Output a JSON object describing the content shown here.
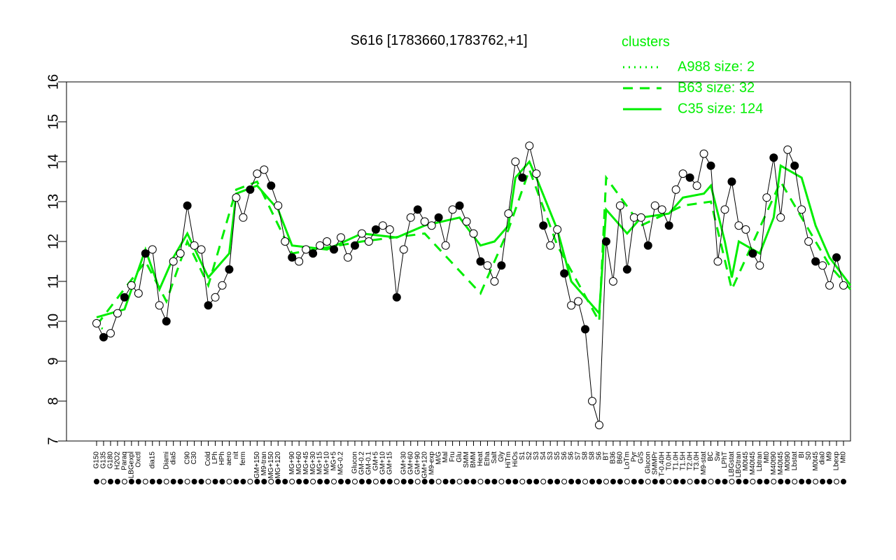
{
  "chart_data": {
    "type": "line",
    "title": "S616 [1783660,1783762,+1]",
    "legend_title": "clusters",
    "legend_position": "top-right",
    "ylim": [
      7,
      16
    ],
    "yticks": [
      7,
      8,
      9,
      10,
      11,
      12,
      13,
      14,
      15,
      16
    ],
    "categories": [
      "G150",
      "G135",
      "G180",
      "H2O2",
      "Paraq",
      "LBGexpl",
      "Oxctl",
      null,
      "dia15",
      null,
      "Diami",
      "dia5",
      null,
      "C90",
      "C30",
      null,
      "Cold",
      "LPh",
      "HPh",
      "aero",
      "nit",
      "ferm",
      null,
      "GM+150",
      "M9-tran",
      "MG+150",
      "MG+120",
      null,
      "MG+90",
      "MG+60",
      "MG+45",
      "MG+30",
      "MG+15",
      "MG+10",
      "MG+5",
      "MG-0.2",
      null,
      "Glucon",
      "GM-0.2",
      "GM-0.1",
      "GM+5",
      "GM+10",
      "GM+15",
      null,
      "GM+30",
      "GM+60",
      "GM+90",
      "GM+120",
      "M9-exp",
      "M/G",
      "Mal",
      "Fru",
      "Glu",
      "SMM",
      "BMM",
      "Heat",
      "Etha",
      "Salt",
      "Gly",
      "HiTm",
      "HiOs",
      "S1",
      "S2",
      "S3",
      "S4",
      "S3",
      "S5",
      "S6",
      "S6",
      "S7",
      "S8",
      "S8",
      "S6",
      "BT",
      "B36",
      "B60",
      "LoTm",
      "Pyr",
      "G/S",
      "Glucon",
      "SMMPr",
      "T-0.40H",
      "T0.0H",
      "T1.0H",
      "T1.5H",
      "T2.0H",
      "T3.0H",
      "M9-stat",
      "BC",
      "Sw",
      "LPhT",
      "LBGstat",
      "LBGtran",
      "M0t45",
      "M40t45",
      "Lbtran",
      "Mt0",
      "M40t90",
      "M40t45",
      "M0t90",
      "Lbstat",
      "BI",
      "S0",
      "M0t45",
      "dia0",
      "M9",
      "Lbexp",
      "Mt0"
    ],
    "values": [
      9.95,
      9.6,
      9.7,
      10.2,
      10.6,
      10.9,
      10.7,
      11.7,
      11.8,
      10.4,
      10.0,
      11.5,
      11.7,
      12.9,
      11.9,
      11.8,
      10.4,
      10.6,
      10.9,
      11.3,
      13.1,
      12.6,
      13.3,
      13.7,
      13.8,
      13.4,
      12.9,
      12.0,
      11.6,
      11.5,
      11.8,
      11.7,
      11.9,
      12.0,
      11.8,
      12.1,
      11.6,
      11.9,
      12.2,
      12.0,
      12.3,
      12.4,
      12.3,
      10.6,
      11.8,
      12.6,
      12.8,
      12.5,
      12.4,
      12.6,
      11.9,
      12.8,
      12.9,
      12.5,
      12.2,
      11.5,
      11.4,
      11.0,
      11.4,
      12.7,
      14.0,
      13.6,
      14.4,
      13.7,
      12.4,
      11.9,
      12.3,
      11.2,
      10.4,
      10.5,
      9.8,
      8.0,
      7.4,
      12.0,
      11.0,
      12.9,
      11.3,
      12.6,
      12.6,
      11.9,
      12.9,
      12.8,
      12.4,
      13.3,
      13.7,
      13.6,
      13.4,
      14.2,
      13.9,
      11.5,
      12.8,
      13.5,
      12.4,
      12.3,
      11.7,
      11.4,
      13.1,
      14.1,
      12.6,
      14.3,
      13.9,
      12.8,
      12.0,
      11.5,
      11.4,
      10.9,
      11.6,
      10.9
    ],
    "color": "#000000",
    "series": [
      {
        "name": "A988 size: 2",
        "color": "#00ee00",
        "style": "dotted",
        "x": [
          0,
          1
        ],
        "values": [
          9.9,
          9.8
        ]
      },
      {
        "name": "B63 size: 32",
        "color": "#00ee00",
        "style": "dashed",
        "x": [
          0,
          7,
          10,
          13,
          16,
          20,
          23,
          28,
          38,
          47,
          55,
          59,
          62,
          66,
          72,
          73,
          78,
          84,
          88,
          91,
          98,
          105,
          108
        ],
        "values": [
          9.9,
          11.5,
          10.5,
          12.0,
          10.9,
          13.3,
          13.5,
          11.7,
          12.0,
          12.2,
          10.7,
          12.3,
          13.8,
          11.9,
          10.0,
          13.6,
          12.4,
          12.9,
          13.0,
          10.8,
          13.5,
          11.4,
          10.8
        ]
      },
      {
        "name": "C35 size: 124",
        "color": "#00ee00",
        "style": "solid",
        "x": [
          0,
          4,
          7,
          9,
          11,
          13,
          16,
          19,
          20,
          23,
          26,
          28,
          33,
          38,
          43,
          47,
          52,
          55,
          57,
          59,
          60,
          62,
          63,
          66,
          68,
          72,
          73,
          76,
          78,
          82,
          84,
          87,
          88,
          90,
          91,
          92,
          95,
          97,
          98,
          101,
          103,
          105,
          108
        ],
        "values": [
          10.1,
          10.3,
          11.8,
          10.8,
          11.6,
          12.2,
          11.1,
          11.7,
          13.2,
          13.4,
          12.8,
          11.9,
          11.8,
          12.2,
          12.1,
          12.4,
          12.6,
          11.9,
          12.0,
          12.4,
          13.6,
          14.0,
          13.6,
          12.3,
          11.0,
          10.2,
          12.8,
          12.2,
          12.6,
          12.7,
          13.1,
          13.2,
          13.4,
          12.0,
          11.1,
          12.0,
          11.7,
          12.6,
          13.9,
          13.6,
          12.4,
          11.6,
          10.9
        ]
      }
    ]
  }
}
